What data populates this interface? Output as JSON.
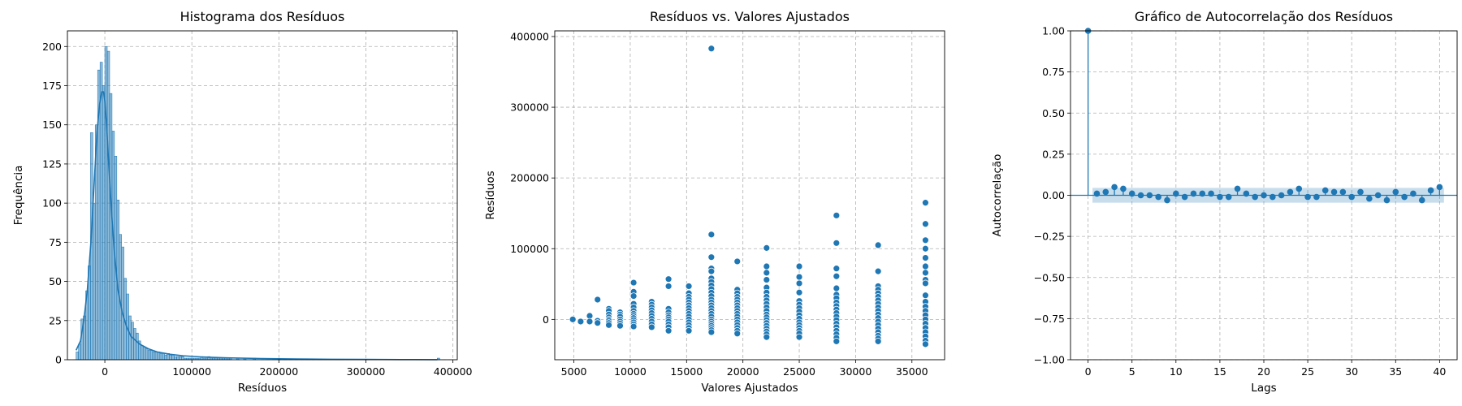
{
  "figure": {
    "background": "#ffffff",
    "grid_color": "#b0b0b0",
    "series_color": "#1f77b4"
  },
  "chart_data": [
    {
      "type": "bar",
      "subtype": "histogram-with-kde",
      "title": "Histograma dos Resíduos",
      "xlabel": "Resíduos",
      "ylabel": "Frequência",
      "xlim": [
        -43000,
        405000
      ],
      "ylim": [
        0,
        210
      ],
      "xticks": [
        0,
        100000,
        200000,
        300000,
        400000
      ],
      "xtick_labels": [
        "0",
        "100000",
        "200000",
        "300000",
        "400000"
      ],
      "yticks": [
        0,
        25,
        50,
        75,
        100,
        125,
        150,
        175,
        200
      ],
      "grid": true,
      "bin_start": -33000,
      "bin_width": 2750,
      "counts": [
        5,
        10,
        26,
        28,
        44,
        60,
        145,
        100,
        150,
        185,
        190,
        175,
        200,
        197,
        170,
        146,
        130,
        102,
        80,
        72,
        52,
        42,
        28,
        24,
        20,
        17,
        12,
        9,
        8,
        7,
        6,
        6,
        5,
        5,
        5,
        4,
        4,
        3,
        4,
        3,
        3,
        2,
        2,
        2,
        2,
        1,
        1,
        1,
        1,
        1,
        1,
        1,
        2,
        1,
        1,
        2,
        1,
        1,
        1,
        1,
        1,
        1,
        1,
        1,
        1,
        0,
        0,
        1,
        0,
        0,
        1,
        0,
        0,
        0,
        1
      ],
      "outlier_bins": [
        {
          "x": 382000,
          "count": 1
        }
      ],
      "kde": {
        "x": [
          -33000,
          -28000,
          -24000,
          -20000,
          -16000,
          -12000,
          -9000,
          -6000,
          -3500,
          -1500,
          0,
          2000,
          5000,
          8000,
          11000,
          15000,
          20000,
          25000,
          30000,
          40000,
          50000,
          60000,
          75000,
          90000,
          110000,
          140000,
          180000,
          220000,
          260000,
          300000,
          340000,
          382000
        ],
        "y": [
          6,
          12,
          26,
          45,
          75,
          115,
          145,
          163,
          171,
          171,
          165,
          150,
          120,
          92,
          68,
          45,
          30,
          21,
          15,
          10,
          7,
          5,
          3.5,
          2.5,
          1.8,
          1.2,
          0.8,
          0.5,
          0.3,
          0.2,
          0.1,
          0.05
        ]
      }
    },
    {
      "type": "scatter",
      "title": "Resíduos vs. Valores Ajustados",
      "xlabel": "Valores Ajustados",
      "ylabel": "Resíduos",
      "xlim": [
        3300,
        37900
      ],
      "ylim": [
        -57000,
        408000
      ],
      "xticks": [
        5000,
        10000,
        15000,
        20000,
        25000,
        30000,
        35000
      ],
      "yticks": [
        0,
        100000,
        200000,
        300000,
        400000
      ],
      "grid": true,
      "groups": [
        {
          "x": 4900,
          "y": [
            0
          ]
        },
        {
          "x": 5600,
          "y": [
            -3000
          ]
        },
        {
          "x": 6400,
          "y": [
            5000,
            -3000
          ]
        },
        {
          "x": 7100,
          "y": [
            28000,
            -2000,
            -5000
          ]
        },
        {
          "x": 8100,
          "y": [
            15000,
            12000,
            7000,
            3000,
            0,
            -2000,
            -5000,
            -8000
          ]
        },
        {
          "x": 9100,
          "y": [
            10000,
            7000,
            4000,
            0,
            -3000,
            -6000,
            -9000
          ]
        },
        {
          "x": 10300,
          "y": [
            52000,
            39000,
            33000,
            22000,
            17000,
            12000,
            8000,
            5000,
            2000,
            -1000,
            -4000,
            -7000,
            -10000
          ]
        },
        {
          "x": 11900,
          "y": [
            25000,
            21000,
            17000,
            13000,
            9000,
            5000,
            1000,
            -3000,
            -7000,
            -11000
          ]
        },
        {
          "x": 13400,
          "y": [
            57000,
            47000,
            15000,
            10000,
            6000,
            3000,
            0,
            -3000,
            -7000,
            -11000,
            -16000
          ]
        },
        {
          "x": 15200,
          "y": [
            47000,
            37000,
            32000,
            28000,
            24000,
            20000,
            16000,
            12000,
            8000,
            4000,
            0,
            -4000,
            -8000,
            -12000,
            -16000
          ]
        },
        {
          "x": 17200,
          "y": [
            383000,
            120000,
            88000,
            72000,
            68000,
            58000,
            53000,
            48000,
            43000,
            38000,
            33000,
            28000,
            24000,
            20000,
            16000,
            12000,
            8000,
            4000,
            0,
            -3000,
            -6000,
            -9000,
            -12000,
            -15000,
            -18000
          ]
        },
        {
          "x": 19500,
          "y": [
            82000,
            42000,
            37000,
            32000,
            28000,
            24000,
            20000,
            16000,
            12000,
            8000,
            4000,
            0,
            -4000,
            -8000,
            -12000,
            -16000,
            -20000
          ]
        },
        {
          "x": 22100,
          "y": [
            101000,
            75000,
            66000,
            56000,
            45000,
            38000,
            32000,
            27000,
            22000,
            17000,
            12000,
            7000,
            3000,
            -1000,
            -5000,
            -9000,
            -13000,
            -17000,
            -21000,
            -25000
          ]
        },
        {
          "x": 25000,
          "y": [
            75000,
            60000,
            51000,
            38000,
            26000,
            21000,
            16000,
            11000,
            6000,
            1000,
            -4000,
            -8000,
            -12000,
            -16000,
            -20000,
            -25000
          ]
        },
        {
          "x": 28300,
          "y": [
            147000,
            108000,
            72000,
            61000,
            44000,
            35000,
            30000,
            24000,
            19000,
            14000,
            9000,
            4000,
            -1000,
            -6000,
            -11000,
            -16000,
            -21000,
            -26000,
            -31000
          ]
        },
        {
          "x": 32000,
          "y": [
            105000,
            68000,
            47000,
            42000,
            37000,
            32000,
            27000,
            22000,
            17000,
            12000,
            7000,
            2000,
            -3000,
            -8000,
            -13000,
            -18000,
            -23000,
            -27000,
            -31000
          ]
        },
        {
          "x": 36200,
          "y": [
            165000,
            135000,
            112000,
            100000,
            87000,
            75000,
            66000,
            56000,
            51000,
            34000,
            25000,
            18000,
            12000,
            6000,
            0,
            -6000,
            -12000,
            -18000,
            -24000,
            -30000,
            -35000
          ]
        }
      ]
    },
    {
      "type": "scatter",
      "subtype": "autocorrelation-stem",
      "title": "Gráfico de Autocorrelação dos Resíduos",
      "xlabel": "Lags",
      "ylabel": "Autocorrelação",
      "xlim": [
        -2,
        42
      ],
      "ylim": [
        -1.0,
        1.0
      ],
      "xticks": [
        0,
        5,
        10,
        15,
        20,
        25,
        30,
        35,
        40
      ],
      "yticks": [
        -1.0,
        -0.75,
        -0.5,
        -0.25,
        0.0,
        0.25,
        0.5,
        0.75,
        1.0
      ],
      "ytick_labels": [
        "−1.00",
        "−0.75",
        "−0.50",
        "−0.25",
        "0.00",
        "0.25",
        "0.50",
        "0.75",
        "1.00"
      ],
      "grid": true,
      "lags": [
        0,
        1,
        2,
        3,
        4,
        5,
        6,
        7,
        8,
        9,
        10,
        11,
        12,
        13,
        14,
        15,
        16,
        17,
        18,
        19,
        20,
        21,
        22,
        23,
        24,
        25,
        26,
        27,
        28,
        29,
        30,
        31,
        32,
        33,
        34,
        35,
        36,
        37,
        38,
        39,
        40
      ],
      "acf": [
        1.0,
        0.01,
        0.02,
        0.05,
        0.04,
        0.01,
        0.0,
        0.0,
        -0.01,
        -0.03,
        0.01,
        -0.01,
        0.01,
        0.01,
        0.01,
        -0.01,
        -0.01,
        0.04,
        0.01,
        -0.01,
        0.0,
        -0.01,
        0.0,
        0.02,
        0.04,
        -0.01,
        -0.01,
        0.03,
        0.02,
        0.02,
        -0.01,
        0.02,
        -0.02,
        0.0,
        -0.03,
        0.02,
        -0.01,
        0.01,
        -0.03,
        0.03,
        0.05
      ],
      "confidence_band": [
        -0.045,
        0.045
      ]
    }
  ]
}
